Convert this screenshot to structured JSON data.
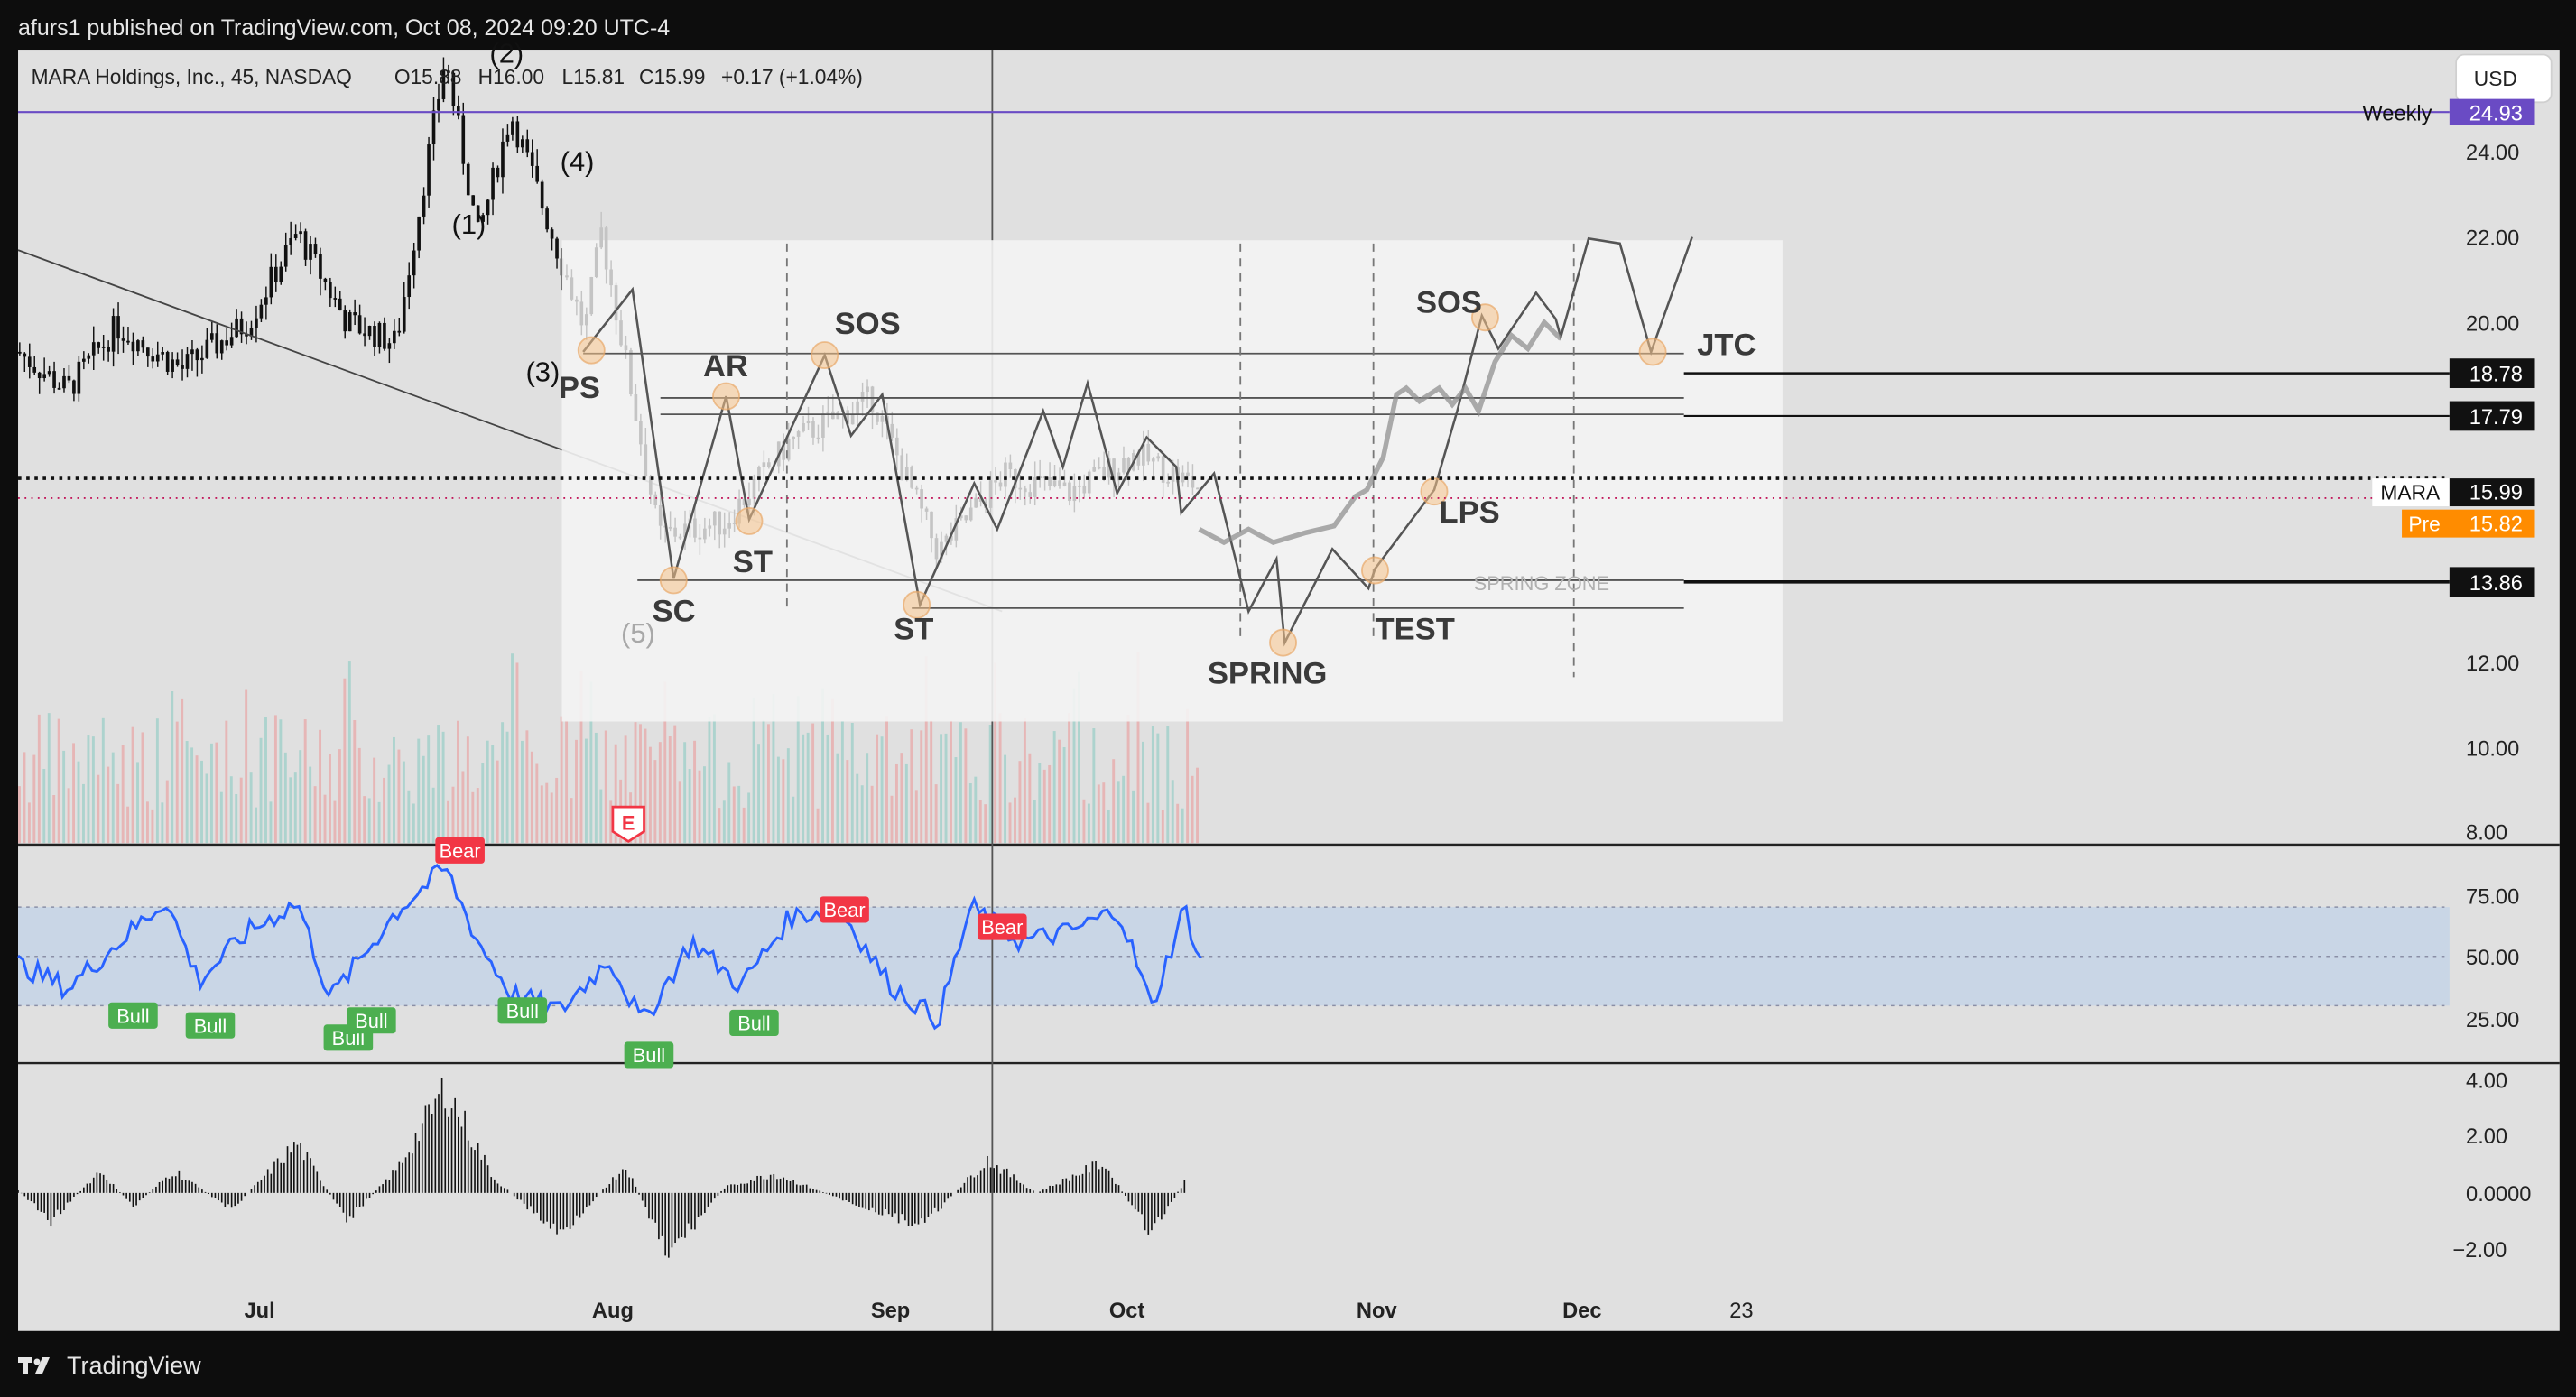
{
  "header": {
    "published_by": "afurs1 published on TradingView.com, Oct 08, 2024 09:20 UTC-4"
  },
  "footer": {
    "brand": "TradingView"
  },
  "colors": {
    "chart_bg": "#e0e0e0",
    "overlay": "#f4f4f4",
    "rsi_line": "#2962ff",
    "rsi_band": "#c9d6e6",
    "bull": "#4caf50",
    "bear": "#f23645",
    "weekly_line": "#6a4bc4",
    "pre_badge": "#ff8c00",
    "marker": "#f5c28a"
  },
  "legend": {
    "symbol": "MARA Holdings, Inc., 45, NASDAQ",
    "open": "O15.88",
    "high": "H16.00",
    "low": "L15.81",
    "close": "C15.99",
    "change": "+0.17 (+1.04%)"
  },
  "currency_button": "USD",
  "price_axis": {
    "ticks": [
      "24.00",
      "22.00",
      "20.00",
      "12.00",
      "10.00",
      "8.00"
    ],
    "weekly": {
      "label": "Weekly",
      "value": "24.93"
    },
    "levels": [
      "18.78",
      "17.79",
      "13.86"
    ],
    "last": {
      "symbol": "MARA",
      "value": "15.99"
    },
    "pre": {
      "label": "Pre",
      "value": "15.82"
    }
  },
  "rsi_axis": {
    "ticks": [
      "75.00",
      "50.00",
      "25.00"
    ]
  },
  "macd_axis": {
    "ticks": [
      "4.00",
      "2.00",
      "0.0000",
      "−2.00"
    ]
  },
  "time_axis": [
    "Jul",
    "Aug",
    "Sep",
    "Oct",
    "Nov",
    "Dec",
    "23"
  ],
  "earnings_marker": "E",
  "elliott_labels": [
    "(2)",
    "(4)",
    "(1)",
    "(3)",
    "(5)"
  ],
  "wyckoff_labels": {
    "ps": "PS",
    "ar": "AR",
    "sos1": "SOS",
    "sc": "SC",
    "st1": "ST",
    "st2": "ST",
    "spring": "SPRING",
    "test": "TEST",
    "lps": "LPS",
    "sos2": "SOS",
    "jtc": "JTC",
    "spring_zone": "SPRING ZONE"
  },
  "rsi_signals": {
    "bull": "Bull",
    "bear": "Bear"
  },
  "chart_data": [
    {
      "type": "candlestick",
      "ylim": [
        8,
        25.5
      ],
      "series": [
        {
          "name": "MARA",
          "approx_path": [
            [
              0,
              19.6
            ],
            [
              30,
              18.7
            ],
            [
              60,
              20.2
            ],
            [
              100,
              19.2
            ],
            [
              140,
              20.3
            ],
            [
              170,
              22.4
            ],
            [
              200,
              20.3
            ],
            [
              230,
              19.8
            ],
            [
              260,
              26.5
            ],
            [
              280,
              22.3
            ],
            [
              300,
              25.2
            ],
            [
              330,
              21.8
            ],
            [
              345,
              20.1
            ],
            [
              355,
              22.4
            ],
            [
              390,
              15.3
            ],
            [
              430,
              15.6
            ],
            [
              470,
              17.5
            ],
            [
              520,
              18.5
            ],
            [
              560,
              14.9
            ],
            [
              600,
              16.7
            ],
            [
              640,
              16.3
            ],
            [
              680,
              17.2
            ],
            [
              720,
              16.4
            ]
          ]
        }
      ],
      "horizontal_lines": [
        24.93,
        18.78,
        17.79,
        15.99,
        15.82,
        13.86
      ]
    },
    {
      "type": "line",
      "name": "RSI",
      "ylim": [
        0,
        100
      ],
      "bands": [
        30,
        70
      ],
      "series": [
        {
          "name": "RSI",
          "approx_path": [
            [
              0,
              47
            ],
            [
              30,
              37
            ],
            [
              60,
              55
            ],
            [
              90,
              73
            ],
            [
              110,
              40
            ],
            [
              140,
              60
            ],
            [
              170,
              72
            ],
            [
              190,
              33
            ],
            [
              230,
              68
            ],
            [
              260,
              86
            ],
            [
              280,
              56
            ],
            [
              300,
              35
            ],
            [
              330,
              28
            ],
            [
              360,
              49
            ],
            [
              380,
              23
            ],
            [
              410,
              56
            ],
            [
              440,
              38
            ],
            [
              470,
              66
            ],
            [
              500,
              70
            ],
            [
              530,
              39
            ],
            [
              560,
              24
            ],
            [
              580,
              70
            ],
            [
              610,
              56
            ],
            [
              640,
              60
            ],
            [
              670,
              69
            ],
            [
              690,
              29
            ],
            [
              710,
              70
            ],
            [
              720,
              47
            ]
          ]
        }
      ],
      "signals": [
        {
          "label": "Bull",
          "x": 70,
          "value": 26
        },
        {
          "label": "Bull",
          "x": 117,
          "value": 22
        },
        {
          "label": "Bull",
          "x": 201,
          "value": 17
        },
        {
          "label": "Bull",
          "x": 215,
          "value": 24
        },
        {
          "label": "Bull",
          "x": 307,
          "value": 28
        },
        {
          "label": "Bull",
          "x": 384,
          "value": 10
        },
        {
          "label": "Bull",
          "x": 448,
          "value": 23
        },
        {
          "label": "Bear",
          "x": 269,
          "value": 93
        },
        {
          "label": "Bear",
          "x": 503,
          "value": 69
        },
        {
          "label": "Bear",
          "x": 599,
          "value": 62
        }
      ]
    },
    {
      "type": "bar",
      "name": "MACD histogram",
      "ylim": [
        -3,
        4.5
      ],
      "approx_path": [
        [
          0,
          0.1
        ],
        [
          20,
          -1.0
        ],
        [
          50,
          0.8
        ],
        [
          70,
          -0.5
        ],
        [
          95,
          0.8
        ],
        [
          130,
          -0.6
        ],
        [
          170,
          1.8
        ],
        [
          200,
          -1.0
        ],
        [
          230,
          0.8
        ],
        [
          260,
          3.8
        ],
        [
          290,
          0.5
        ],
        [
          330,
          -1.5
        ],
        [
          370,
          1.0
        ],
        [
          395,
          -2.3
        ],
        [
          430,
          0.2
        ],
        [
          460,
          0.7
        ],
        [
          500,
          -0.2
        ],
        [
          550,
          -1.2
        ],
        [
          590,
          1.2
        ],
        [
          620,
          0.0
        ],
        [
          660,
          1.1
        ],
        [
          690,
          -1.5
        ],
        [
          715,
          0.9
        ],
        [
          720,
          0.3
        ]
      ]
    }
  ]
}
